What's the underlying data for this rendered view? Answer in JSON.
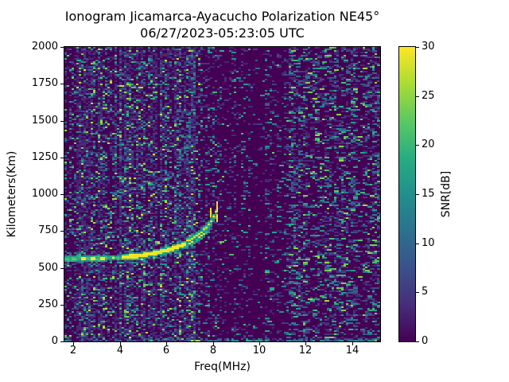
{
  "figure": {
    "title_line1": "Ionogram Jicamarca-Ayacucho Polarization NE45°",
    "title_line2": "06/27/2023-05:23:05 UTC",
    "background": "#ffffff",
    "text_color": "#000000"
  },
  "axes": {
    "xlabel": "Freq(MHz)",
    "ylabel": "Kilometers(Km)",
    "x_ticks": [
      2,
      4,
      6,
      8,
      10,
      12,
      14
    ],
    "y_ticks": [
      0,
      250,
      500,
      750,
      1000,
      1250,
      1500,
      1750,
      2000
    ]
  },
  "colorbar": {
    "label": "SNR[dB]",
    "ticks": [
      0,
      5,
      10,
      15,
      20,
      25,
      30
    ],
    "range": [
      0,
      30
    ]
  },
  "chart_data": {
    "type": "heatmap",
    "title": "Ionogram Jicamarca-Ayacucho Polarization NE45° 06/27/2023-05:23:05 UTC",
    "xlabel": "Freq(MHz)",
    "ylabel": "Kilometers(Km)",
    "zlabel": "SNR[dB]",
    "x_range": [
      1.62,
      15.2
    ],
    "y_range": [
      0,
      2000
    ],
    "z_range": [
      0,
      30
    ],
    "colormap": "viridis",
    "colormap_stops": [
      [
        0.0,
        "#440154"
      ],
      [
        0.125,
        "#472d7b"
      ],
      [
        0.25,
        "#3b518b"
      ],
      [
        0.375,
        "#2c718e"
      ],
      [
        0.5,
        "#21908c"
      ],
      [
        0.625,
        "#27ad81"
      ],
      [
        0.75,
        "#5cc863"
      ],
      [
        0.875,
        "#aadc32"
      ],
      [
        1.0,
        "#fde725"
      ]
    ],
    "seed": 42,
    "cell": [
      3,
      2
    ],
    "noise_bands": [
      {
        "f": [
          1.62,
          2.1
        ],
        "density": 0.33,
        "vpow": 3.2,
        "vmax": 26,
        "wash": false,
        "wide2": 0.0
      },
      {
        "f": [
          2.1,
          7.45
        ],
        "density": 0.42,
        "vpow": 3.2,
        "vmax": 28,
        "wash": true,
        "wide2": 0.0
      },
      {
        "f": [
          7.45,
          8.55
        ],
        "density": 0.22,
        "vpow": 3.1,
        "vmax": 24,
        "wash": false,
        "wide2": 0.1
      },
      {
        "f": [
          8.55,
          9.65
        ],
        "density": 0.13,
        "vpow": 3.0,
        "vmax": 22,
        "wash": false,
        "wide2": 0.25
      },
      {
        "f": [
          9.65,
          10.25
        ],
        "density": 0.055,
        "vpow": 3.0,
        "vmax": 18,
        "wash": false,
        "wide2": 0.2
      },
      {
        "f": [
          10.25,
          11.25
        ],
        "density": 0.18,
        "vpow": 2.8,
        "vmax": 24,
        "wash": false,
        "wide2": 0.45
      },
      {
        "f": [
          11.25,
          15.2
        ],
        "density": 0.28,
        "vpow": 2.6,
        "vmax": 26,
        "wash": false,
        "wide2": 0.5
      }
    ],
    "column_wash": {
      "prob": 0.33,
      "cell_prob": 0.5,
      "db": [
        2.0,
        4.0
      ]
    },
    "traces": {
      "f_layer_o_mode": {
        "db_core": 30,
        "points": [
          [
            1.62,
            559
          ],
          [
            2.0,
            560
          ],
          [
            2.6,
            561
          ],
          [
            3.2,
            563
          ],
          [
            3.8,
            567
          ],
          [
            4.3,
            573
          ],
          [
            4.8,
            581
          ],
          [
            5.2,
            590
          ],
          [
            5.6,
            602
          ],
          [
            6.0,
            617
          ],
          [
            6.4,
            636
          ],
          [
            6.8,
            658
          ],
          [
            7.1,
            679
          ],
          [
            7.4,
            704
          ],
          [
            7.6,
            726
          ],
          [
            7.75,
            750
          ],
          [
            7.84,
            775
          ],
          [
            7.88,
            800
          ]
        ],
        "spike": {
          "f": 7.88,
          "alt": [
            790,
            905
          ],
          "db": 29
        }
      },
      "f_layer_x_mode": {
        "db_core": 29,
        "points": [
          [
            6.9,
            680
          ],
          [
            7.2,
            706
          ],
          [
            7.5,
            736
          ],
          [
            7.7,
            762
          ],
          [
            7.85,
            788
          ],
          [
            7.95,
            812
          ],
          [
            8.05,
            838
          ],
          [
            8.12,
            862
          ],
          [
            8.17,
            884
          ]
        ],
        "spike": {
          "f": 8.17,
          "alt": [
            810,
            950
          ],
          "db": 29
        }
      },
      "second_hop": {
        "db_range": [
          5,
          20
        ],
        "points": [
          [
            1.62,
            945
          ],
          [
            2.2,
            962
          ],
          [
            3.0,
            985
          ],
          [
            3.8,
            1010
          ],
          [
            4.6,
            1036
          ],
          [
            5.2,
            1056
          ],
          [
            5.7,
            1080
          ],
          [
            6.1,
            1115
          ],
          [
            6.5,
            1185
          ],
          [
            6.8,
            1290
          ],
          [
            7.0,
            1420
          ],
          [
            7.12,
            1590
          ],
          [
            7.22,
            1800
          ],
          [
            7.28,
            1990
          ]
        ]
      }
    },
    "ground_clutter": {
      "base_prob": 0.5,
      "base_db": [
        4,
        14
      ],
      "patches": [
        {
          "f": [
            7.05,
            7.55
          ],
          "prob": 0.32,
          "db": [
            24,
            30
          ]
        },
        {
          "f": [
            8.6,
            10.45
          ],
          "prob": 0.75,
          "db": [
            11,
            21
          ]
        },
        {
          "f": [
            11.2,
            15.2
          ],
          "prob": 0.42,
          "db": [
            8,
            18
          ]
        }
      ]
    }
  }
}
